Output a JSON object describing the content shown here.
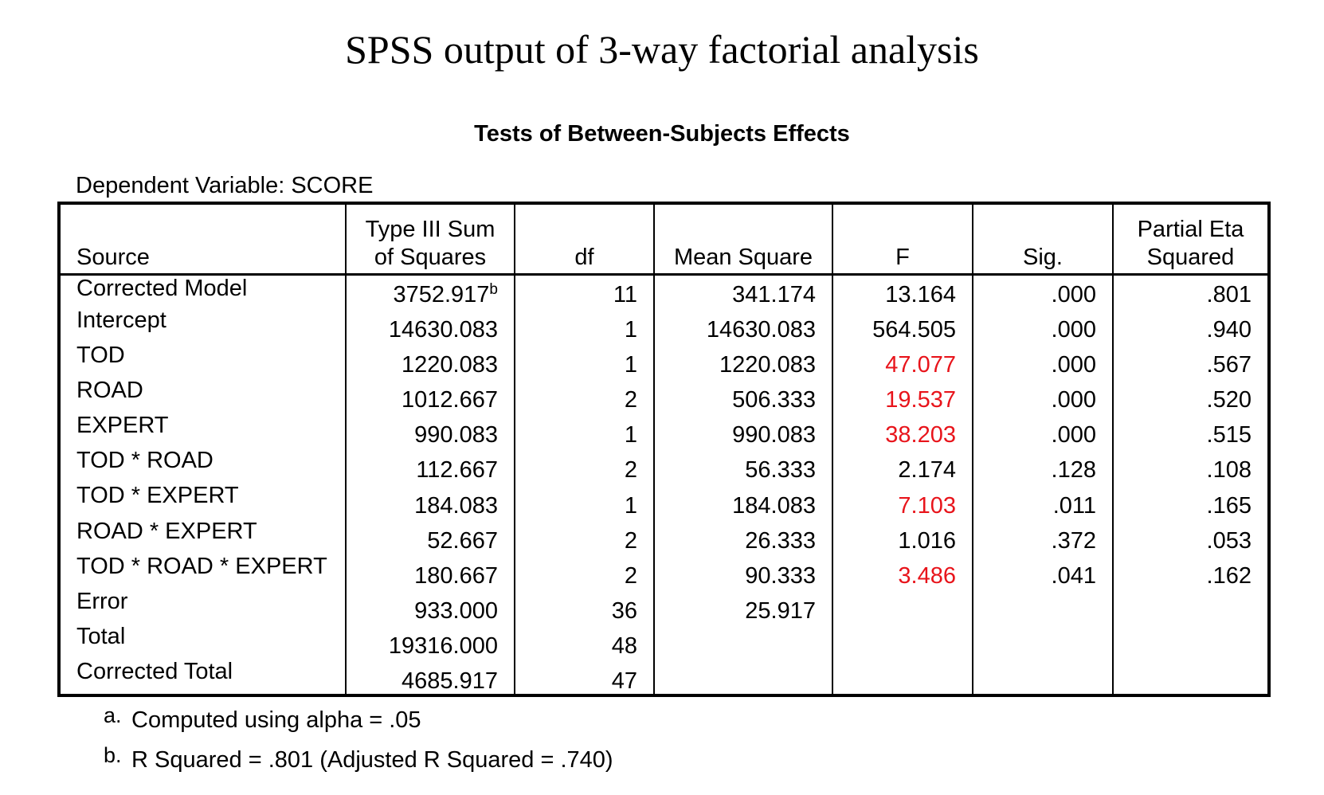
{
  "slide_title": "SPSS output of 3-way factorial analysis",
  "table_title": "Tests of Between-Subjects Effects",
  "dependent_variable": "Dependent Variable: SCORE",
  "headers": {
    "source": "Source",
    "ss_line1": "Type III Sum",
    "ss_line2": "of Squares",
    "df": "df",
    "ms": "Mean Square",
    "f": "F",
    "sig": "Sig.",
    "eta_line1": "Partial Eta",
    "eta_line2": "Squared"
  },
  "rows": [
    {
      "source": "Corrected Model",
      "ss": "3752.917",
      "ss_note": "b",
      "df": "11",
      "ms": "341.174",
      "f": "13.164",
      "sig": ".000",
      "eta": ".801",
      "f_highlight": false
    },
    {
      "source": "Intercept",
      "ss": "14630.083",
      "ss_note": "",
      "df": "1",
      "ms": "14630.083",
      "f": "564.505",
      "sig": ".000",
      "eta": ".940",
      "f_highlight": false
    },
    {
      "source": "TOD",
      "ss": "1220.083",
      "ss_note": "",
      "df": "1",
      "ms": "1220.083",
      "f": "47.077",
      "sig": ".000",
      "eta": ".567",
      "f_highlight": true
    },
    {
      "source": "ROAD",
      "ss": "1012.667",
      "ss_note": "",
      "df": "2",
      "ms": "506.333",
      "f": "19.537",
      "sig": ".000",
      "eta": ".520",
      "f_highlight": true
    },
    {
      "source": "EXPERT",
      "ss": "990.083",
      "ss_note": "",
      "df": "1",
      "ms": "990.083",
      "f": "38.203",
      "sig": ".000",
      "eta": ".515",
      "f_highlight": true
    },
    {
      "source": "TOD * ROAD",
      "ss": "112.667",
      "ss_note": "",
      "df": "2",
      "ms": "56.333",
      "f": "2.174",
      "sig": ".128",
      "eta": ".108",
      "f_highlight": false
    },
    {
      "source": "TOD * EXPERT",
      "ss": "184.083",
      "ss_note": "",
      "df": "1",
      "ms": "184.083",
      "f": "7.103",
      "sig": ".011",
      "eta": ".165",
      "f_highlight": true
    },
    {
      "source": "ROAD * EXPERT",
      "ss": "52.667",
      "ss_note": "",
      "df": "2",
      "ms": "26.333",
      "f": "1.016",
      "sig": ".372",
      "eta": ".053",
      "f_highlight": false
    },
    {
      "source": "TOD * ROAD * EXPERT",
      "ss": "180.667",
      "ss_note": "",
      "df": "2",
      "ms": "90.333",
      "f": "3.486",
      "sig": ".041",
      "eta": ".162",
      "f_highlight": true
    },
    {
      "source": "Error",
      "ss": "933.000",
      "ss_note": "",
      "df": "36",
      "ms": "25.917",
      "f": "",
      "sig": "",
      "eta": "",
      "f_highlight": false
    },
    {
      "source": "Total",
      "ss": "19316.000",
      "ss_note": "",
      "df": "48",
      "ms": "",
      "f": "",
      "sig": "",
      "eta": "",
      "f_highlight": false
    },
    {
      "source": "Corrected Total",
      "ss": "4685.917",
      "ss_note": "",
      "df": "47",
      "ms": "",
      "f": "",
      "sig": "",
      "eta": "",
      "f_highlight": false
    }
  ],
  "footnotes": {
    "a_letter": "a.",
    "a_text": "Computed using alpha = .05",
    "b_letter": "b.",
    "b_text": "R Squared = .801 (Adjusted R Squared = .740)"
  },
  "colors": {
    "highlight": "#e8141b"
  }
}
